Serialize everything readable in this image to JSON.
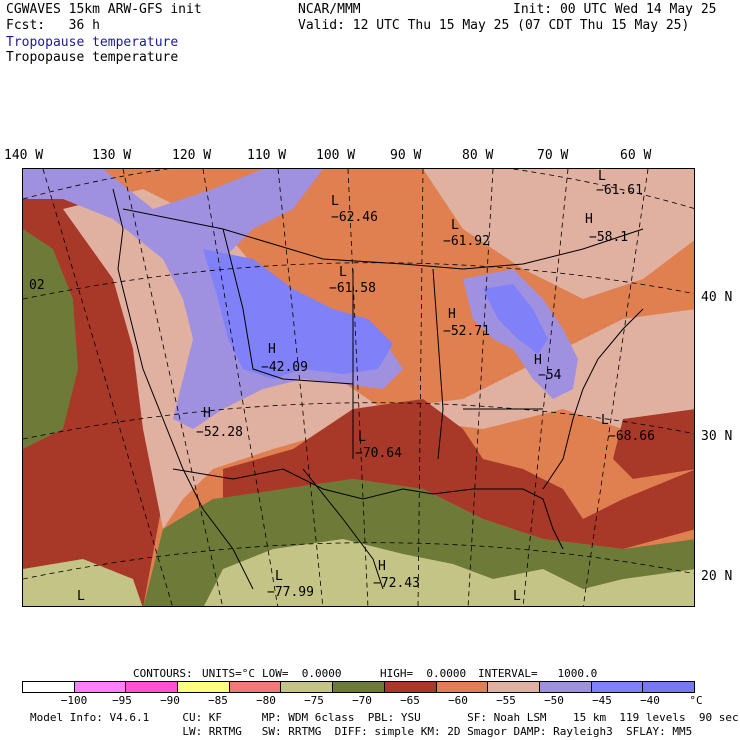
{
  "header": {
    "line1_left": "CGWAVES 15km ARW-GFS init",
    "line1_center": "NCAR/MMM",
    "line1_right": "Init: 00 UTC Wed 14 May 25",
    "line2_left": "Fcst:   36 h",
    "line2_right": "Valid: 12 UTC Thu 15 May 25 (07 CDT Thu 15 May 25)",
    "line3": "Tropopause temperature",
    "line4": "Tropopause temperature",
    "line3_color": "#1a1a9c"
  },
  "longitude_labels": [
    "140 W",
    "130 W",
    "120 W",
    "110 W",
    "100 W",
    "90 W",
    "80 W",
    "70 W",
    "60 W"
  ],
  "latitude_labels": [
    "40 N",
    "30 N",
    "20 N"
  ],
  "map_labels": {
    "l_hudson": "L",
    "v_hudson": "−62.46",
    "l_canada": "L",
    "v_canada": "−61.92",
    "l_ne": "L",
    "v_ne": "−61.61",
    "h_ne": "H",
    "v_ne2": "−58.1",
    "l_plains": "L",
    "v_plains": "−61.58",
    "h_lakes": "H",
    "v_lakes": "−52.71",
    "h_central": "H",
    "v_central": "−42.09",
    "h_east": "H",
    "v_east": "−54",
    "h_sw": "H",
    "v_sw": "−52.28",
    "l_south": "L",
    "v_south": "−70.64",
    "l_atl": "L",
    "v_atl": "−68.66",
    "l_mex": "L",
    "v_mex": "−77.99",
    "h_gulf": "H",
    "v_gulf": "−72.43",
    "l_pacific": "L",
    "v_pacific": "02",
    "l_sw_corner": "L",
    "l_se_corner": "L"
  },
  "contours_line": {
    "contours": "CONTOURS:",
    "units": "UNITS=°C",
    "low": "LOW=  0.0000",
    "high": "HIGH=  0.0000",
    "interval": "INTERVAL=   1000.0"
  },
  "colorbar": {
    "colors": [
      "#ffffff",
      "#ff80ff",
      "#ff50d8",
      "#ffff80",
      "#f07a78",
      "#c4c486",
      "#6e7a38",
      "#a83828",
      "#e08050",
      "#e0b0a0",
      "#a090e0",
      "#8080f8",
      "#7878f0"
    ],
    "ticks": [
      "−100",
      "−95",
      "−90",
      "−85",
      "−80",
      "−75",
      "−70",
      "−65",
      "−60",
      "−55",
      "−50",
      "−45",
      "−40"
    ],
    "unit": "°C"
  },
  "footer": {
    "line1": "Model Info: V4.6.1     CU: KF      MP: WDM 6class  PBL: YSU       SF: Noah LSM    15 km  119 levels  90 sec",
    "line2": "                       LW: RRTMG   SW: RRTMG  DIFF: simple KM: 2D Smagor DAMP: Rayleigh3  SFLAY: MM5"
  }
}
